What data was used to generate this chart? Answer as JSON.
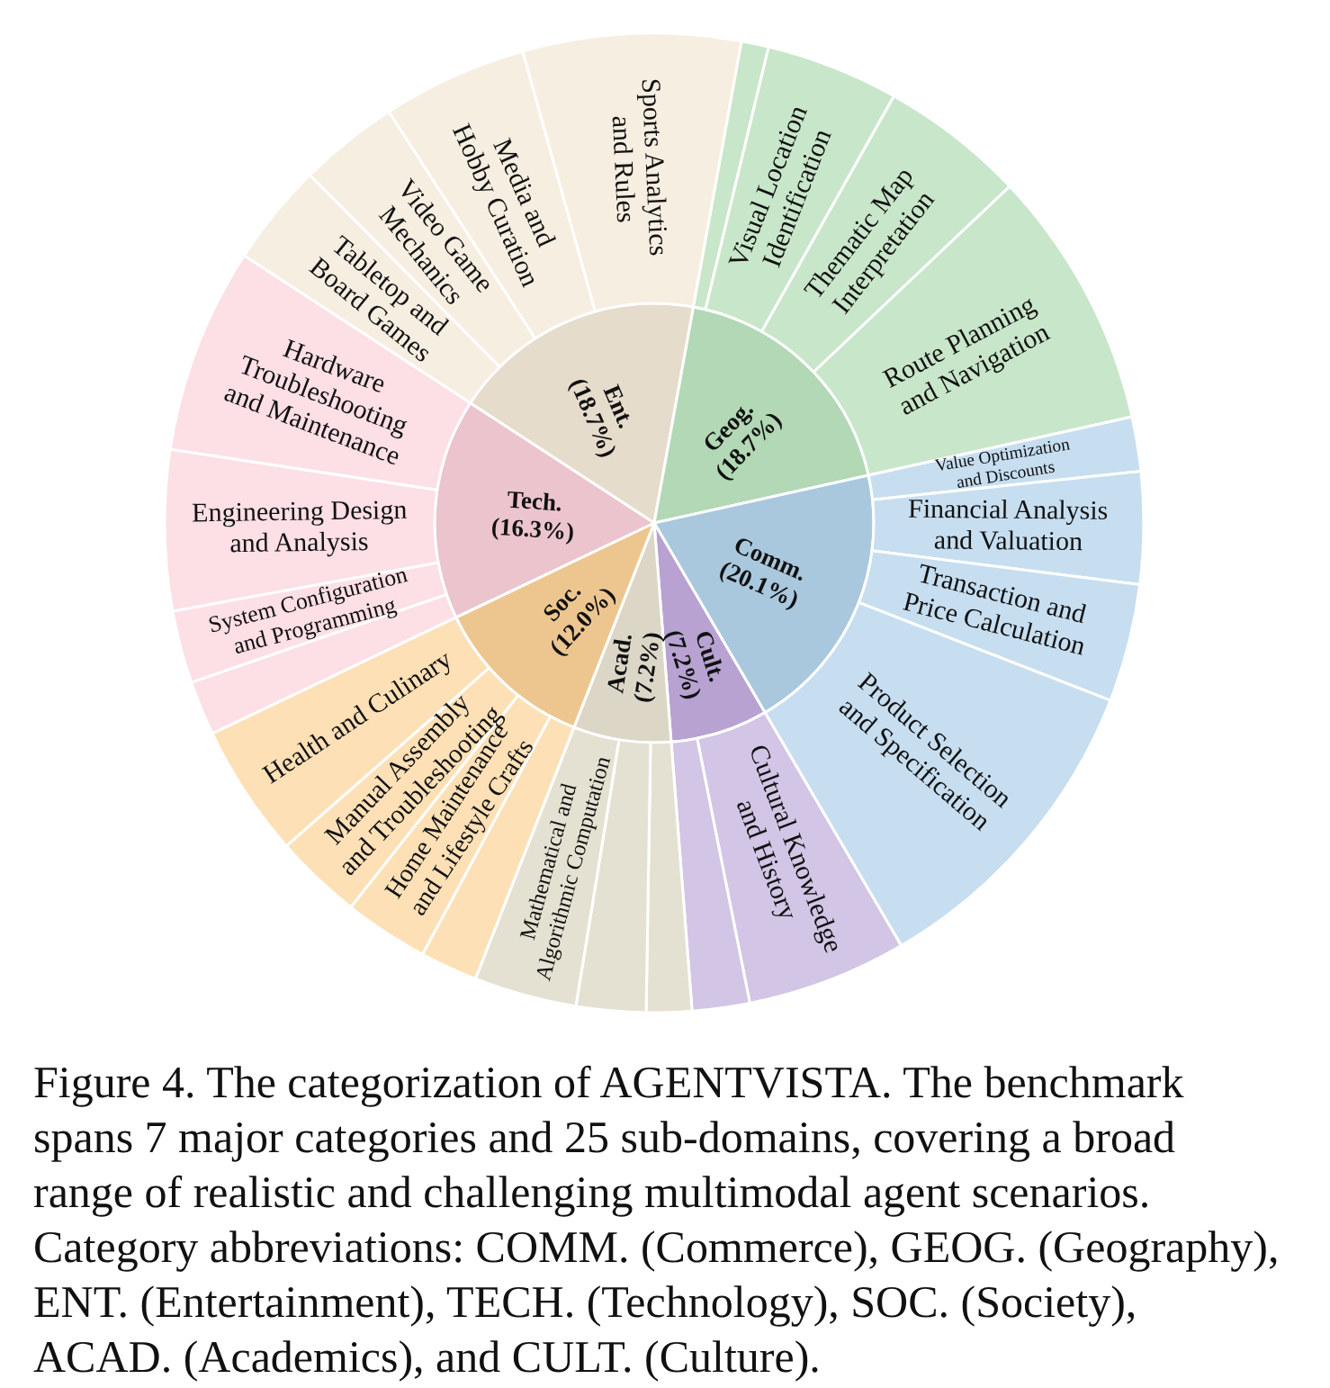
{
  "chart_data": {
    "type": "pie",
    "series": [
      {
        "type": "pie",
        "values": [
          18.7,
          18.7,
          20.1,
          7.2,
          7.2,
          12.0,
          16.3
        ],
        "value_labels": [
          "Ent. (18.7%)",
          "Geog. (18.7%)",
          "Comm. (20.1%)",
          "Cult. (7.2%)",
          "Acad. (7.2%)",
          "Soc. (12.0%)",
          "Tech. (16.3%)"
        ],
        "colors": [
          "#e6dccb",
          "#b2d8b5",
          "#a9c8de",
          "#b7a2d2",
          "#dbd6c6",
          "#edc68f",
          "#ebc4cd"
        ]
      },
      {
        "type": "donut",
        "values": [
          3.4,
          3.3,
          4.8,
          7.2,
          0.9,
          4.4,
          4.8,
          8.6,
          1.8,
          3.7,
          3.9,
          10.7,
          5.3,
          1.9,
          1.5,
          2.3,
          3.4,
          1.9,
          2.8,
          2.9,
          4.4,
          1.8,
          2.4,
          5.3,
          6.8
        ],
        "value_labels": [
          "Tabletop and Board Games",
          "Video Game Mechanics",
          "Media and Hobby Curation",
          "Sports Analytics and Rules",
          null,
          "Visual Location Identification",
          "Thematic Map Interpretation",
          "Route Planning and Navigation",
          "Value Optimization and Discounts",
          "Financial Analysis and Valuation",
          "Transaction and Price Calculation",
          "Product Selection and Specification",
          "Cultural Knowledge and History",
          null,
          null,
          null,
          "Mathematical and Algorithmic Computation",
          null,
          "Home Maintenance and Lifestyle Crafts",
          "Manual Assembly and Troubleshooting",
          "Health and Culinary",
          null,
          "System Configuration and Programming",
          "Engineering Design and Analysis",
          "Hardware Troubleshooting and Maintenance"
        ],
        "colors": [
          "#f6eee0",
          "#f6eee0",
          "#f6eee0",
          "#f6eee0",
          "#c8e6c9",
          "#c8e6c9",
          "#c8e6c9",
          "#c8e6c9",
          "#c6def0",
          "#c6def0",
          "#c6def0",
          "#c6def0",
          "#d3c5e6",
          "#d3c5e6",
          "#e5e1d2",
          "#e5e1d2",
          "#e5e1d2",
          "#fde0b6",
          "#fde0b6",
          "#fde0b6",
          "#fde0b6",
          "#fddfe6",
          "#fddfe6",
          "#fddfe6",
          "#fddfe6"
        ]
      }
    ],
    "annotations": [
      "Figure 4. The categorization of AGENTVISTA. The benchmark spans 7 major categories and 25 sub-domains, covering a broad range of realistic and challenging multimodal agent scenarios. Category abbreviations: COMM. (Commerce), GEOG. (Geography), ENT. (Entertainment), TECH. (Technology), SOC. (Society), ACAD. (Academics), and CULT. (Culture)."
    ]
  }
}
